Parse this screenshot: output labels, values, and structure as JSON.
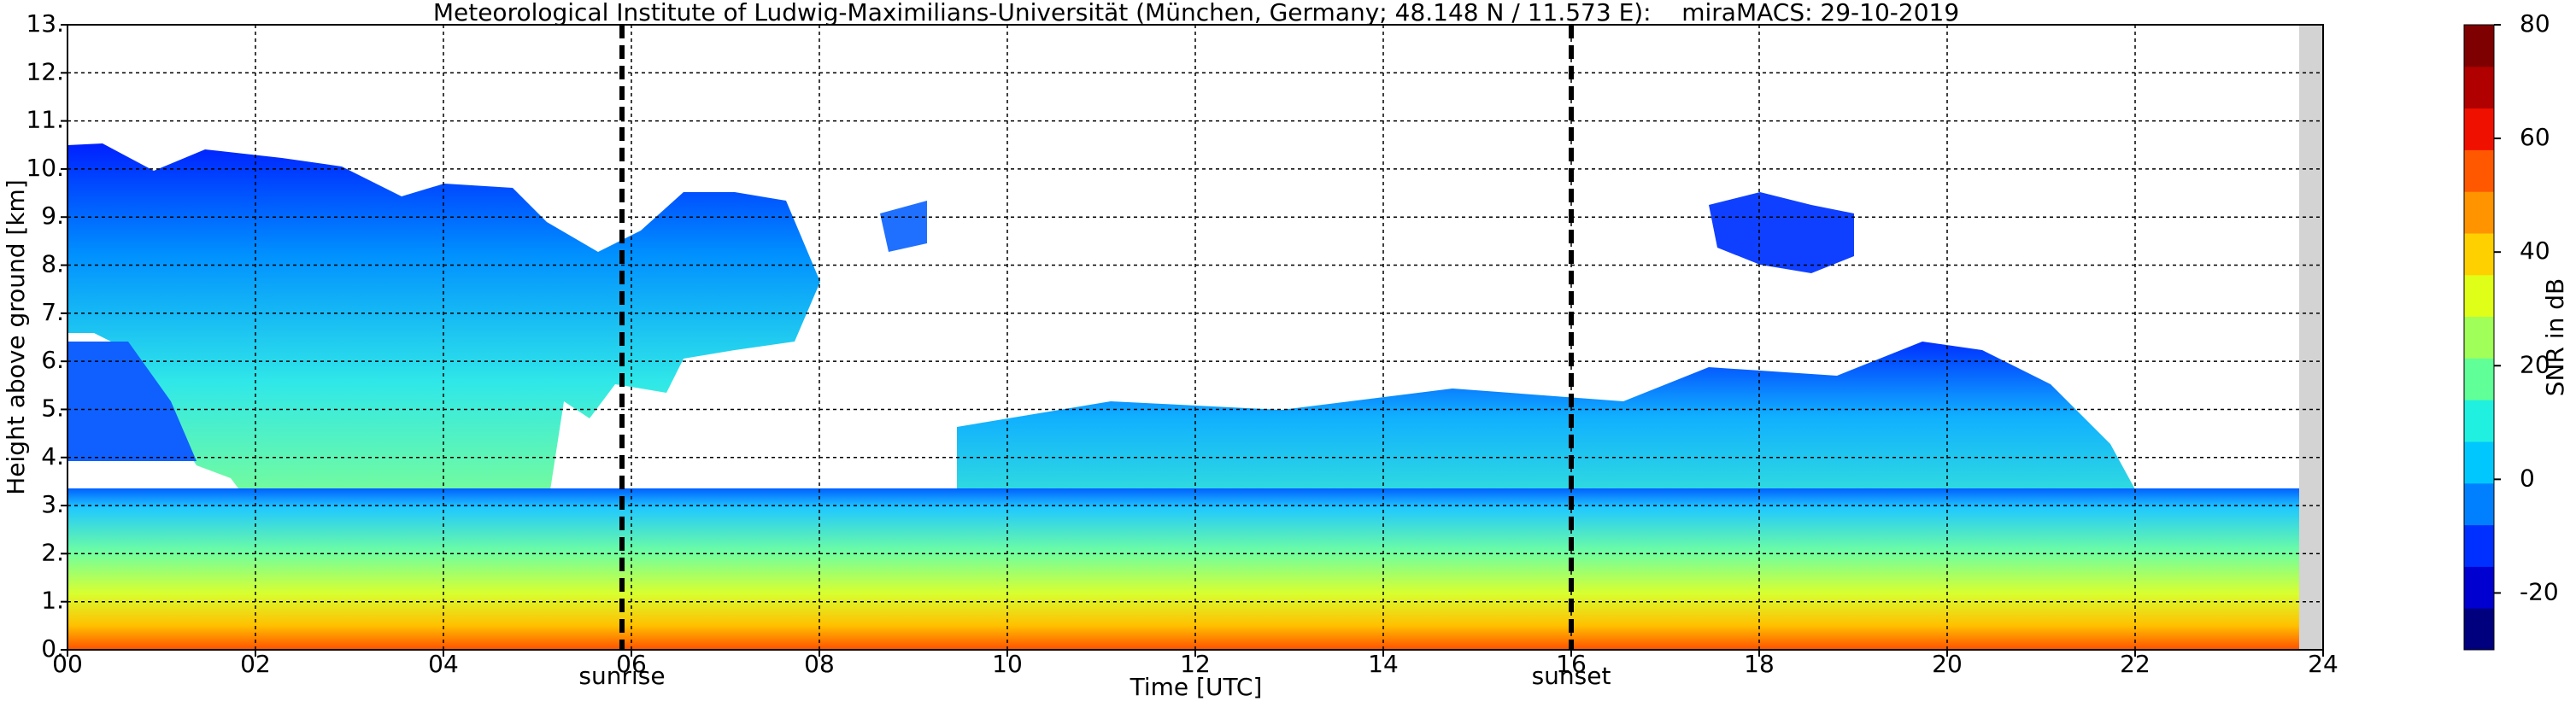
{
  "chart_data": {
    "type": "heatmap",
    "title": "Meteorological Institute of Ludwig-Maximilians-Universität (München, Germany; 48.148 N / 11.573 E):    miraMACS: 29-10-2019",
    "xlabel": "Time [UTC]",
    "ylabel": "Height above ground [km]",
    "xlim": [
      0,
      24
    ],
    "xticks": [
      {
        "value": 0,
        "label": "00"
      },
      {
        "value": 2,
        "label": "02"
      },
      {
        "value": 4,
        "label": "04"
      },
      {
        "value": 6,
        "label": "06"
      },
      {
        "value": 8,
        "label": "08"
      },
      10,
      12,
      14,
      16,
      18,
      20,
      22,
      24
    ],
    "ylim": [
      0,
      13
    ],
    "yticks": [
      {
        "value": 0,
        "label": "0."
      },
      {
        "value": 1,
        "label": "1."
      },
      {
        "value": 2,
        "label": "2."
      },
      {
        "value": 3,
        "label": "3."
      },
      {
        "value": 4,
        "label": "4."
      },
      {
        "value": 5,
        "label": "5."
      },
      {
        "value": 6,
        "label": "6."
      },
      {
        "value": 7,
        "label": "7."
      },
      {
        "value": 8,
        "label": "8."
      },
      {
        "value": 9,
        "label": "9."
      },
      {
        "value": 10,
        "label": "10."
      },
      {
        "value": 11,
        "label": "11."
      },
      {
        "value": 12,
        "label": "12."
      },
      {
        "value": 13,
        "label": "13."
      }
    ],
    "grid": true,
    "annotations": [
      {
        "x": 5.9,
        "label": "sunrise"
      },
      {
        "x": 16.0,
        "label": "sunset"
      }
    ],
    "colorbar": {
      "label": "SNR in dB",
      "lim": [
        -30,
        80
      ],
      "ticks": [
        -20,
        0,
        20,
        40,
        60,
        80
      ],
      "colors": [
        "#00007f",
        "#0000d0",
        "#0030ff",
        "#0080ff",
        "#00c8ff",
        "#20f0e0",
        "#60ff98",
        "#a0ff58",
        "#e0ff18",
        "#ffd000",
        "#ff9400",
        "#ff5800",
        "#f01000",
        "#b00000",
        "#7f0000"
      ]
    }
  }
}
